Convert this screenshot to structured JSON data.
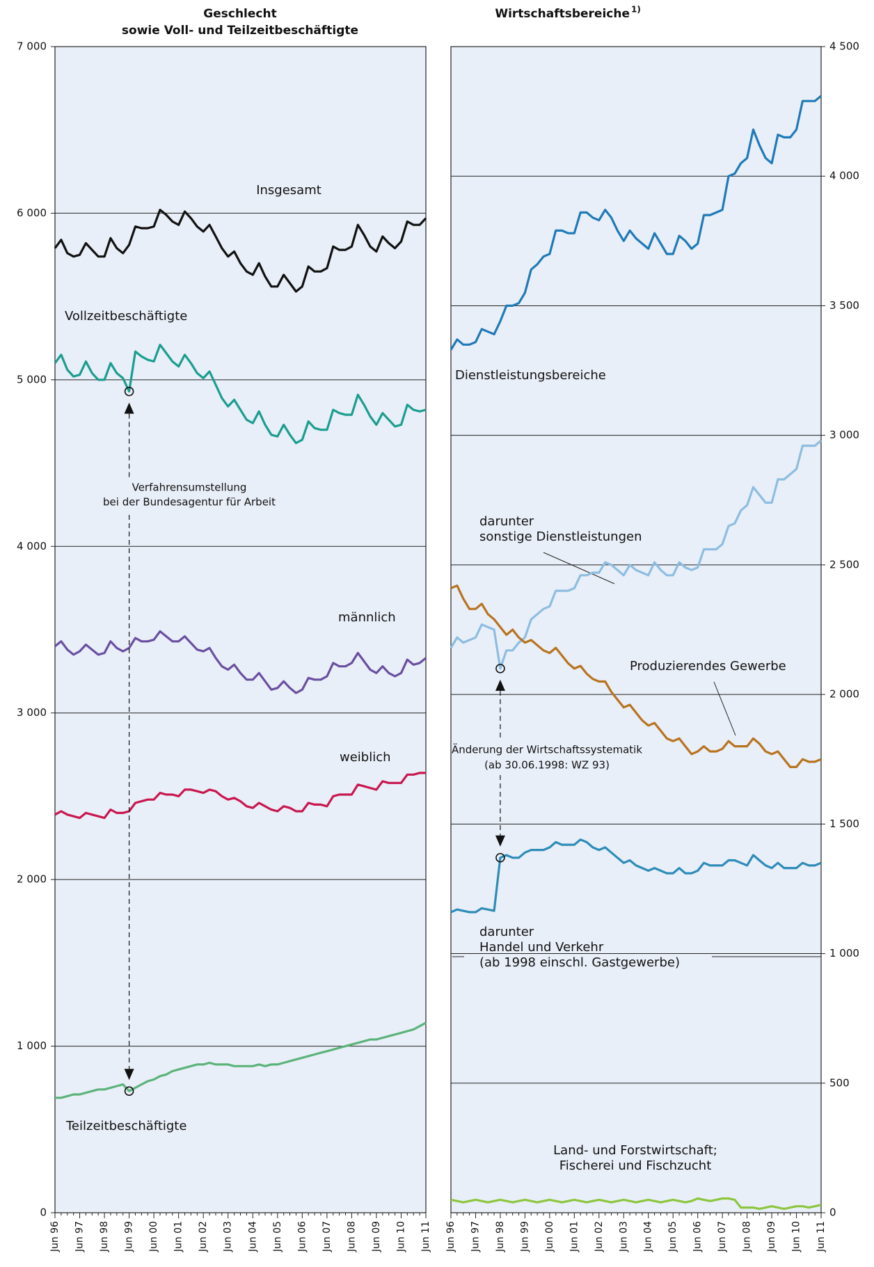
{
  "chart_data": [
    {
      "type": "line",
      "title": [
        "Geschlecht",
        "sowie Voll- und Teilzeitbeschäftigte"
      ],
      "categories": [
        "Jun 96",
        null,
        null,
        null,
        "Jun 97",
        null,
        null,
        null,
        "Jun 98",
        null,
        null,
        null,
        "Jun 99",
        null,
        null,
        null,
        "Jun 00",
        null,
        null,
        null,
        "Jun 01",
        null,
        null,
        null,
        "Jun 02",
        null,
        null,
        null,
        "Jun 03",
        null,
        null,
        null,
        "Jun 04",
        null,
        null,
        null,
        "Jun 05",
        null,
        null,
        null,
        "Jun 06",
        null,
        null,
        null,
        "Jun 07",
        null,
        null,
        null,
        "Jun 08",
        null,
        null,
        null,
        "Jun 09",
        null,
        null,
        null,
        "Jun 10",
        null,
        null,
        null,
        "Jun 11"
      ],
      "ylim": [
        0,
        7000
      ],
      "yticks": [
        0,
        {
          "value": 1000,
          "label": "1 000"
        },
        {
          "value": 2000,
          "label": "2 000"
        },
        {
          "value": 3000,
          "label": "3 000"
        },
        {
          "value": 4000,
          "label": "4 000"
        },
        {
          "value": 5000,
          "label": "5 000"
        },
        {
          "value": 6000,
          "label": "6 000"
        },
        {
          "value": 7000,
          "label": "7 000"
        }
      ],
      "grid": true,
      "series": [
        {
          "name": [
            "Insgesamt"
          ],
          "color": "#111111",
          "values": [
            5790,
            5840,
            5760,
            5740,
            5750,
            5820,
            5780,
            5740,
            5740,
            5850,
            5790,
            5760,
            5810,
            5920,
            5910,
            5910,
            5920,
            6020,
            5990,
            5950,
            5930,
            6010,
            5970,
            5920,
            5890,
            5930,
            5860,
            5790,
            5740,
            5770,
            5700,
            5650,
            5630,
            5700,
            5620,
            5560,
            5560,
            5630,
            5580,
            5530,
            5560,
            5680,
            5650,
            5650,
            5670,
            5800,
            5780,
            5780,
            5800,
            5930,
            5870,
            5800,
            5770,
            5860,
            5820,
            5790,
            5830,
            5950,
            5930,
            5930,
            5970
          ]
        },
        {
          "name": [
            "Vollzeitbeschäftigte"
          ],
          "color": "#1a9e8f",
          "values": [
            5100,
            5150,
            5060,
            5020,
            5030,
            5110,
            5040,
            5000,
            5000,
            5100,
            5040,
            5010,
            4930,
            5170,
            5140,
            5120,
            5110,
            5210,
            5160,
            5110,
            5080,
            5150,
            5100,
            5040,
            5010,
            5050,
            4970,
            4890,
            4840,
            4880,
            4820,
            4760,
            4740,
            4810,
            4730,
            4670,
            4660,
            4730,
            4670,
            4620,
            4640,
            4750,
            4710,
            4700,
            4700,
            4820,
            4800,
            4790,
            4790,
            4910,
            4850,
            4780,
            4730,
            4800,
            4760,
            4720,
            4730,
            4850,
            4820,
            4810,
            4820
          ]
        },
        {
          "name": [
            "männlich"
          ],
          "color": "#6a4fa0",
          "values": [
            3400,
            3430,
            3380,
            3350,
            3370,
            3410,
            3380,
            3350,
            3360,
            3430,
            3390,
            3370,
            3390,
            3450,
            3430,
            3430,
            3440,
            3490,
            3460,
            3430,
            3430,
            3460,
            3420,
            3380,
            3370,
            3390,
            3330,
            3280,
            3260,
            3290,
            3240,
            3200,
            3200,
            3240,
            3190,
            3140,
            3150,
            3190,
            3150,
            3120,
            3140,
            3210,
            3200,
            3200,
            3220,
            3300,
            3280,
            3280,
            3300,
            3360,
            3310,
            3260,
            3240,
            3280,
            3240,
            3220,
            3240,
            3320,
            3290,
            3300,
            3330
          ]
        },
        {
          "name": [
            "weiblich"
          ],
          "color": "#c8174f",
          "values": [
            2390,
            2410,
            2390,
            2380,
            2370,
            2400,
            2390,
            2380,
            2370,
            2420,
            2400,
            2400,
            2410,
            2460,
            2470,
            2480,
            2480,
            2520,
            2510,
            2510,
            2500,
            2540,
            2540,
            2530,
            2520,
            2540,
            2530,
            2500,
            2480,
            2490,
            2470,
            2440,
            2430,
            2460,
            2440,
            2420,
            2410,
            2440,
            2430,
            2410,
            2410,
            2460,
            2450,
            2450,
            2440,
            2500,
            2510,
            2510,
            2510,
            2570,
            2560,
            2550,
            2540,
            2590,
            2580,
            2580,
            2580,
            2630,
            2630,
            2640,
            2640
          ]
        },
        {
          "name": [
            "Teilzeitbeschäftigte"
          ],
          "color": "#5cb37a",
          "values": [
            690,
            690,
            700,
            710,
            710,
            720,
            730,
            740,
            740,
            750,
            760,
            770,
            730,
            750,
            770,
            790,
            800,
            820,
            830,
            850,
            860,
            870,
            880,
            890,
            890,
            900,
            890,
            890,
            890,
            880,
            880,
            880,
            880,
            890,
            880,
            890,
            890,
            900,
            910,
            920,
            930,
            940,
            950,
            960,
            970,
            980,
            990,
            1000,
            1010,
            1020,
            1030,
            1040,
            1040,
            1050,
            1060,
            1070,
            1080,
            1090,
            1100,
            1120,
            1140
          ]
        }
      ],
      "annotation": {
        "text": [
          "Verfahrensumstellung",
          "bei der Bundesagentur für Arbeit"
        ],
        "x": "Jun 99"
      }
    },
    {
      "type": "line",
      "title": "Wirtschaftsbereiche",
      "title_note": "1)",
      "categories": [
        "Jun 96",
        null,
        null,
        null,
        "Jun 97",
        null,
        null,
        null,
        "Jun 98",
        null,
        null,
        null,
        "Jun 99",
        null,
        null,
        null,
        "Jun 00",
        null,
        null,
        null,
        "Jun 01",
        null,
        null,
        null,
        "Jun 02",
        null,
        null,
        null,
        "Jun 03",
        null,
        null,
        null,
        "Jun 04",
        null,
        null,
        null,
        "Jun 05",
        null,
        null,
        null,
        "Jun 06",
        null,
        null,
        null,
        "Jun 07",
        null,
        null,
        null,
        "Jun 08",
        null,
        null,
        null,
        "Jun 09",
        null,
        null,
        null,
        "Jun 10",
        null,
        null,
        null,
        "Jun 11"
      ],
      "ylim": [
        0,
        4500
      ],
      "yticks": [
        0,
        500,
        {
          "value": 1000,
          "label": "1 000"
        },
        {
          "value": 1500,
          "label": "1 500"
        },
        {
          "value": 2000,
          "label": "2 000"
        },
        {
          "value": 2500,
          "label": "2 500"
        },
        {
          "value": 3000,
          "label": "3 000"
        },
        {
          "value": 3500,
          "label": "3 500"
        },
        {
          "value": 4000,
          "label": "4 000"
        },
        {
          "value": 4500,
          "label": "4 500"
        }
      ],
      "grid": true,
      "series": [
        {
          "name": [
            "Dienstleistungsbereiche"
          ],
          "color": "#1f7ab8",
          "values": [
            3330,
            3370,
            3350,
            3350,
            3360,
            3410,
            3400,
            3390,
            3440,
            3500,
            3500,
            3510,
            3550,
            3640,
            3660,
            3690,
            3700,
            3790,
            3790,
            3780,
            3780,
            3860,
            3860,
            3840,
            3830,
            3870,
            3840,
            3790,
            3750,
            3790,
            3760,
            3740,
            3720,
            3780,
            3740,
            3700,
            3700,
            3770,
            3750,
            3720,
            3740,
            3850,
            3850,
            3860,
            3870,
            4000,
            4010,
            4050,
            4070,
            4180,
            4120,
            4070,
            4050,
            4160,
            4150,
            4150,
            4180,
            4290,
            4290,
            4290,
            4310
          ]
        },
        {
          "name": [
            "darunter",
            "sonstige Dienstleistungen"
          ],
          "color": "#8dbde0",
          "values": [
            2180,
            2220,
            2200,
            2210,
            2220,
            2270,
            2260,
            2250,
            2100,
            2170,
            2170,
            2200,
            2220,
            2290,
            2310,
            2330,
            2340,
            2400,
            2400,
            2400,
            2410,
            2460,
            2460,
            2470,
            2470,
            2510,
            2500,
            2480,
            2460,
            2500,
            2480,
            2470,
            2460,
            2510,
            2480,
            2460,
            2460,
            2510,
            2490,
            2480,
            2490,
            2560,
            2560,
            2560,
            2580,
            2650,
            2660,
            2710,
            2730,
            2800,
            2770,
            2740,
            2740,
            2830,
            2830,
            2850,
            2870,
            2960,
            2960,
            2960,
            2980
          ]
        },
        {
          "name": [
            "Produzierendes Gewerbe"
          ],
          "color": "#b8731f",
          "values": [
            2410,
            2420,
            2370,
            2330,
            2330,
            2350,
            2310,
            2290,
            2260,
            2230,
            2250,
            2220,
            2200,
            2210,
            2190,
            2170,
            2160,
            2180,
            2150,
            2120,
            2100,
            2110,
            2080,
            2060,
            2050,
            2050,
            2010,
            1980,
            1950,
            1960,
            1930,
            1900,
            1880,
            1890,
            1860,
            1830,
            1820,
            1830,
            1800,
            1770,
            1780,
            1800,
            1780,
            1780,
            1790,
            1820,
            1800,
            1800,
            1800,
            1830,
            1810,
            1780,
            1770,
            1780,
            1750,
            1720,
            1720,
            1750,
            1740,
            1740,
            1750
          ]
        },
        {
          "name": [
            "darunter",
            "Handel und Verkehr",
            "(ab 1998 einschl. Gastgewerbe)"
          ],
          "color": "#2e8cb8",
          "values": [
            1160,
            1170,
            1165,
            1160,
            1160,
            1175,
            1170,
            1165,
            1370,
            1380,
            1370,
            1370,
            1390,
            1400,
            1400,
            1400,
            1410,
            1430,
            1420,
            1420,
            1420,
            1440,
            1430,
            1410,
            1400,
            1410,
            1390,
            1370,
            1350,
            1360,
            1340,
            1330,
            1320,
            1330,
            1320,
            1310,
            1310,
            1330,
            1310,
            1310,
            1320,
            1350,
            1340,
            1340,
            1340,
            1360,
            1360,
            1350,
            1340,
            1380,
            1360,
            1340,
            1330,
            1350,
            1330,
            1330,
            1330,
            1350,
            1340,
            1340,
            1350
          ]
        },
        {
          "name": [
            "Land- und Forstwirtschaft;",
            "Fischerei und Fischzucht"
          ],
          "color": "#8cc63f",
          "values": [
            50,
            45,
            40,
            45,
            50,
            45,
            40,
            45,
            50,
            45,
            40,
            45,
            50,
            45,
            40,
            45,
            50,
            45,
            40,
            45,
            50,
            45,
            40,
            45,
            50,
            45,
            40,
            45,
            50,
            45,
            40,
            45,
            50,
            45,
            40,
            45,
            50,
            45,
            40,
            45,
            55,
            50,
            45,
            50,
            55,
            55,
            50,
            20,
            20,
            20,
            15,
            20,
            25,
            20,
            15,
            20,
            25,
            25,
            20,
            25,
            30
          ]
        }
      ],
      "annotation": {
        "text": [
          "Änderung der Wirtschaftssystematik",
          "(ab 30.06.1998: WZ 93)"
        ],
        "x": "Jun 98"
      }
    }
  ]
}
